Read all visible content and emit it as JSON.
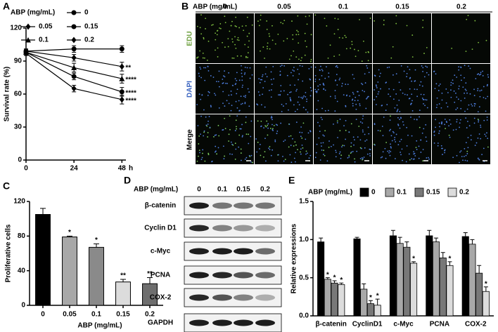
{
  "chart_data": [
    {
      "type": "line",
      "panel": "A",
      "x": [
        0,
        24,
        48
      ],
      "xlim": [
        0,
        50
      ],
      "xticks": [
        0,
        24,
        48
      ],
      "x_label": "h",
      "y_label": "Survival rate (%)",
      "ylim": [
        0,
        120
      ],
      "yticks": [
        0,
        30,
        60,
        90,
        120
      ],
      "legend_title": "ABP (mg/mL)",
      "series": [
        {
          "name": "0",
          "color": "#000000",
          "marker": "circle",
          "values": [
            99,
            101,
            101
          ],
          "errors": [
            2,
            3,
            3
          ]
        },
        {
          "name": "0.05",
          "color": "#000000",
          "marker": "diamond",
          "values": [
            99,
            93,
            85
          ],
          "errors": [
            2,
            3,
            4
          ],
          "annotation": "**"
        },
        {
          "name": "0.15",
          "color": "#000000",
          "marker": "circle",
          "values": [
            98,
            76,
            62
          ],
          "errors": [
            2,
            3,
            4
          ],
          "annotation": "****"
        },
        {
          "name": "0.1",
          "color": "#000000",
          "marker": "triangle",
          "values": [
            98,
            84,
            74
          ],
          "errors": [
            2,
            4,
            4
          ],
          "annotation": "****"
        },
        {
          "name": "0.2",
          "color": "#000000",
          "marker": "diamond",
          "values": [
            97,
            65,
            55
          ],
          "errors": [
            2,
            3,
            4
          ],
          "annotation": "****"
        }
      ]
    },
    {
      "type": "bar",
      "panel": "C",
      "categories": [
        "0",
        "0.05",
        "0.1",
        "0.15",
        "0.2"
      ],
      "values": [
        105,
        79,
        67,
        27,
        25
      ],
      "errors": [
        7,
        1,
        4,
        3,
        7
      ],
      "annotations": [
        null,
        "*",
        "*",
        "**",
        "**"
      ],
      "colors": [
        "#000000",
        "#a8a8a8",
        "#8a8a8a",
        "#dcdcdc",
        "#6e6e6e"
      ],
      "x_label": "ABP (mg/mL)",
      "y_label": "Proliferative cells",
      "ylim": [
        0,
        120
      ],
      "yticks": [
        0,
        40,
        80,
        120
      ]
    },
    {
      "type": "grouped-bar",
      "panel": "E",
      "categories": [
        "β-catenin",
        "CyclinD1",
        "c-Myc",
        "PCNA",
        "COX-2"
      ],
      "y_label": "Relative expressions",
      "ylim": [
        0,
        1.5
      ],
      "yticks": [
        {
          "value": 0,
          "label": "0.0"
        },
        0.5,
        {
          "value": 1,
          "label": "1.0"
        },
        1.5
      ],
      "legend_title": "ABP (mg/mL)",
      "series": [
        {
          "name": "0",
          "color": "#000000",
          "values": [
            0.97,
            1.01,
            1.05,
            1.05,
            1.04
          ],
          "errors": [
            0.05,
            0.02,
            0.07,
            0.07,
            0.05
          ]
        },
        {
          "name": "0.1",
          "color": "#a8a8a8",
          "values": [
            0.48,
            0.35,
            0.95,
            0.97,
            0.94
          ],
          "errors": [
            0.02,
            0.07,
            0.08,
            0.05,
            0.06
          ],
          "annotations": [
            "*",
            null,
            null,
            null,
            null
          ]
        },
        {
          "name": "0.15",
          "color": "#787878",
          "values": [
            0.43,
            0.16,
            0.9,
            0.76,
            0.56
          ],
          "errors": [
            0.03,
            0.04,
            0.07,
            0.07,
            0.1
          ],
          "annotations": [
            "*",
            "*",
            null,
            null,
            null
          ]
        },
        {
          "name": "0.2",
          "color": "#dcdcdc",
          "values": [
            0.41,
            0.14,
            0.69,
            0.66,
            0.32
          ],
          "errors": [
            0.02,
            0.08,
            0.02,
            0.05,
            0.06
          ],
          "annotations": [
            "*",
            "*",
            "*",
            "*",
            "*"
          ]
        }
      ]
    }
  ],
  "microscopy": {
    "panel": "B",
    "header": "ABP (mg/mL)",
    "columns": [
      "0",
      "0.05",
      "0.1",
      "0.15",
      "0.2"
    ],
    "rows": [
      "EDU",
      "DAPI",
      "Merge"
    ]
  },
  "blot": {
    "panel": "D",
    "header": "ABP (mg/mL)",
    "columns": [
      "0",
      "0.1",
      "0.15",
      "0.2"
    ],
    "rows": [
      "β-catenin",
      "Cyclin D1",
      "c-Myc",
      "PCNA",
      "COX-2",
      "GAPDH"
    ]
  }
}
